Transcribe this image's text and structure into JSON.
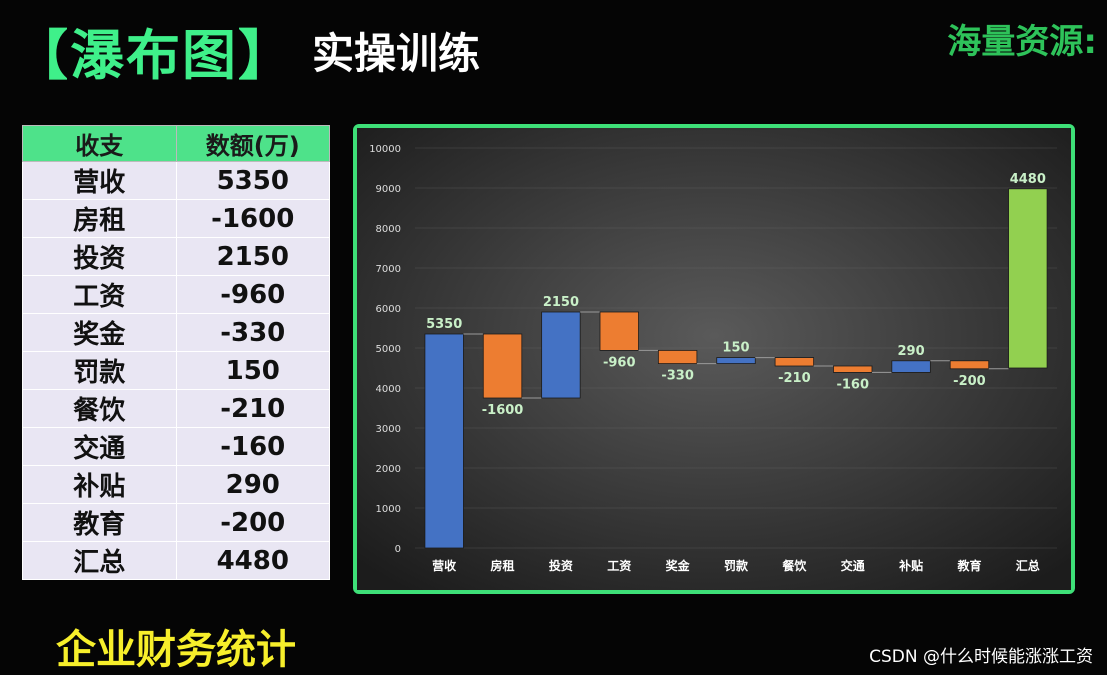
{
  "header": {
    "title": "【瀑布图】",
    "subtitle": "实操训练",
    "corner_text": "海量资源:"
  },
  "footer": {
    "text": "企业财务统计"
  },
  "watermark": "CSDN @什么时候能涨涨工资",
  "table": {
    "headers": [
      "收支",
      "数额(万)"
    ],
    "rows": [
      [
        "营收",
        "5350"
      ],
      [
        "房租",
        "-1600"
      ],
      [
        "投资",
        "2150"
      ],
      [
        "工资",
        "-960"
      ],
      [
        "奖金",
        "-330"
      ],
      [
        "罚款",
        "150"
      ],
      [
        "餐饮",
        "-210"
      ],
      [
        "交通",
        "-160"
      ],
      [
        "补贴",
        "290"
      ],
      [
        "教育",
        "-200"
      ],
      [
        "汇总",
        "4480"
      ]
    ]
  },
  "colors": {
    "increase": "#4472c4",
    "decrease": "#ed7d31",
    "total": "#92d050",
    "frame": "#3ee078"
  },
  "chart_data": {
    "type": "bar",
    "subtype": "waterfall",
    "categories": [
      "营收",
      "房租",
      "投资",
      "工资",
      "奖金",
      "罚款",
      "餐饮",
      "交通",
      "补贴",
      "教育",
      "汇总"
    ],
    "values": [
      5350,
      -1600,
      2150,
      -960,
      -330,
      150,
      -210,
      -160,
      290,
      -200,
      4480
    ],
    "data_labels": [
      "5350",
      "-1600",
      "2150",
      "-960",
      "-330",
      "150",
      "-210",
      "-160",
      "290",
      "-200",
      "4480"
    ],
    "total_index": 10,
    "total_base": 4500,
    "ylim": [
      0,
      10000
    ],
    "yticks": [
      0,
      1000,
      2000,
      3000,
      4000,
      5000,
      6000,
      7000,
      8000,
      9000,
      10000
    ],
    "grid": true,
    "legend": "none"
  }
}
